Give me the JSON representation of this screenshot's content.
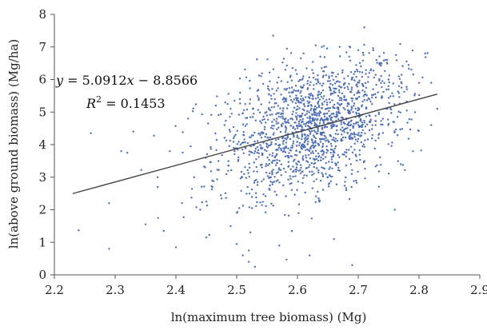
{
  "chart_data": {
    "type": "scatter",
    "xlabel": "ln(maximum tree biomass) (Mg)",
    "ylabel": "ln(above ground biomass) (Mg/ha)",
    "xlim": [
      2.2,
      2.9
    ],
    "ylim": [
      0,
      8
    ],
    "x_ticks": [
      "2.2",
      "2.3",
      "2.4",
      "2.5",
      "2.6",
      "2.7",
      "2.8",
      "2.9"
    ],
    "y_ticks": [
      "0",
      "1",
      "2",
      "3",
      "4",
      "5",
      "6",
      "7",
      "8"
    ],
    "grid": false,
    "legend": "none",
    "point_color": "#4f6fb5",
    "line_color": "#444444",
    "trendline": {
      "slope": 5.0912,
      "intercept": -8.8566,
      "x_range": [
        2.23,
        2.83
      ],
      "equation_lead": "y",
      "equation_rest": " = 5.0912",
      "equation_x": "x",
      "equation_tail": " − 8.8566",
      "r2_lead": "R",
      "r2_sup": "2",
      "r2_rest": " = 0.1453"
    },
    "series": [
      {
        "approx_count": 1600,
        "points": [
          [
            2.24,
            1.37
          ],
          [
            2.26,
            4.35
          ],
          [
            2.29,
            2.2
          ],
          [
            2.29,
            0.8
          ],
          [
            2.31,
            3.8
          ],
          [
            2.32,
            3.75
          ],
          [
            2.33,
            4.4
          ],
          [
            2.35,
            1.55
          ],
          [
            2.37,
            3.0
          ],
          [
            2.37,
            2.7
          ],
          [
            2.38,
            1.35
          ],
          [
            2.39,
            3.8
          ],
          [
            2.4,
            0.85
          ],
          [
            2.41,
            2.2
          ],
          [
            2.42,
            4.8
          ],
          [
            2.43,
            3.0
          ],
          [
            2.44,
            2.0
          ],
          [
            2.45,
            2.25
          ],
          [
            2.45,
            1.15
          ],
          [
            2.46,
            2.7
          ],
          [
            2.47,
            3.5
          ],
          [
            2.48,
            4.6
          ],
          [
            2.49,
            1.5
          ],
          [
            2.49,
            5.1
          ],
          [
            2.5,
            0.95
          ],
          [
            2.51,
            0.6
          ],
          [
            2.52,
            0.4
          ],
          [
            2.53,
            0.25
          ],
          [
            2.52,
            0.75
          ],
          [
            2.54,
            6.1
          ],
          [
            2.56,
            7.35
          ],
          [
            2.57,
            0.9
          ],
          [
            2.58,
            6.3
          ],
          [
            2.61,
            6.8
          ],
          [
            2.62,
            0.6
          ],
          [
            2.63,
            7.05
          ],
          [
            2.64,
            7.0
          ],
          [
            2.66,
            1.1
          ],
          [
            2.69,
            0.3
          ],
          [
            2.7,
            6.9
          ],
          [
            2.71,
            7.6
          ],
          [
            2.73,
            6.6
          ],
          [
            2.75,
            6.0
          ],
          [
            2.76,
            2.0
          ],
          [
            2.77,
            3.4
          ],
          [
            2.78,
            5.7
          ],
          [
            2.79,
            3.8
          ],
          [
            2.81,
            6.8
          ],
          [
            2.82,
            5.9
          ],
          [
            2.82,
            4.6
          ],
          [
            2.83,
            5.1
          ]
        ]
      }
    ]
  }
}
